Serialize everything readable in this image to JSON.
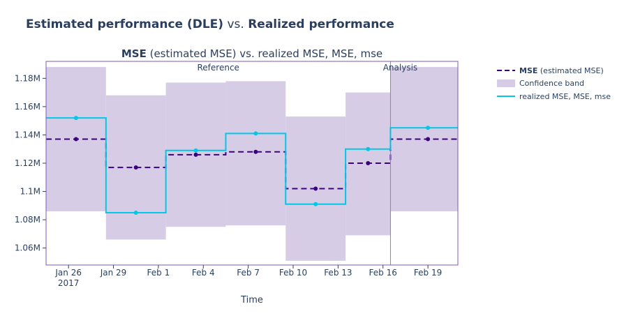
{
  "title": {
    "metric_bold": "Estimated performance (DLE)",
    "vs": "vs.",
    "realized_bold": "Realized performance"
  },
  "chart_data": {
    "type": "line",
    "subtitle": {
      "bold": "MSE",
      "rest": " (estimated MSE) vs. realized MSE, MSE, mse"
    },
    "xlabel": "Time",
    "ylabel": "",
    "x_tick_labels": [
      {
        "date": "2017-01-26",
        "label": "Jan 26",
        "label2": "2017"
      },
      {
        "date": "2017-01-29",
        "label": "Jan 29"
      },
      {
        "date": "2017-02-01",
        "label": "Feb 1"
      },
      {
        "date": "2017-02-04",
        "label": "Feb 4"
      },
      {
        "date": "2017-02-07",
        "label": "Feb 7"
      },
      {
        "date": "2017-02-10",
        "label": "Feb 10"
      },
      {
        "date": "2017-02-13",
        "label": "Feb 13"
      },
      {
        "date": "2017-02-16",
        "label": "Feb 16"
      },
      {
        "date": "2017-02-19",
        "label": "Feb 19"
      }
    ],
    "y_ticks": [
      {
        "value": 1060000,
        "label": "1.06M"
      },
      {
        "value": 1080000,
        "label": "1.08M"
      },
      {
        "value": 1100000,
        "label": "1.1M"
      },
      {
        "value": 1120000,
        "label": "1.12M"
      },
      {
        "value": 1140000,
        "label": "1.14M"
      },
      {
        "value": 1160000,
        "label": "1.16M"
      },
      {
        "value": 1180000,
        "label": "1.18M"
      }
    ],
    "ylim": [
      1048000,
      1192000
    ],
    "xlim": [
      "2017-01-24T12:00",
      "2017-02-21T00:00"
    ],
    "split_date": "2017-02-16T12:00",
    "period_labels": {
      "reference": "Reference",
      "analysis": "Analysis"
    },
    "chunks": [
      {
        "start": "2017-01-24T12:00",
        "end": "2017-01-28T12:00",
        "mid": "2017-01-26T12:00",
        "estimated": 1137000,
        "realized": 1152000,
        "lower": 1086000,
        "upper": 1188000
      },
      {
        "start": "2017-01-28T12:00",
        "end": "2017-02-01T12:00",
        "mid": "2017-01-30T12:00",
        "estimated": 1117000,
        "realized": 1085000,
        "lower": 1066000,
        "upper": 1168000
      },
      {
        "start": "2017-02-01T12:00",
        "end": "2017-02-05T12:00",
        "mid": "2017-02-03T12:00",
        "estimated": 1126000,
        "realized": 1129000,
        "lower": 1075000,
        "upper": 1177000
      },
      {
        "start": "2017-02-05T12:00",
        "end": "2017-02-09T12:00",
        "mid": "2017-02-07T12:00",
        "estimated": 1128000,
        "realized": 1141000,
        "lower": 1076000,
        "upper": 1178000
      },
      {
        "start": "2017-02-09T12:00",
        "end": "2017-02-13T12:00",
        "mid": "2017-02-11T12:00",
        "estimated": 1102000,
        "realized": 1091000,
        "lower": 1051000,
        "upper": 1153000
      },
      {
        "start": "2017-02-13T12:00",
        "end": "2017-02-16T12:00",
        "mid": "2017-02-15T00:00",
        "estimated": 1120000,
        "realized": 1130000,
        "lower": 1069000,
        "upper": 1170000
      },
      {
        "start": "2017-02-16T12:00",
        "end": "2017-02-21T00:00",
        "mid": "2017-02-19T00:00",
        "estimated": 1137000,
        "realized": 1145000,
        "lower": 1086000,
        "upper": 1188000
      }
    ],
    "legend": {
      "estimated_bold": "MSE",
      "estimated_rest": " (estimated MSE)",
      "band": "Confidence band",
      "realized": "realized MSE, MSE, mse",
      "placement": "right"
    },
    "colors": {
      "estimated": "#3b0280",
      "realized": "#00c8e5",
      "band": "#d7cce6",
      "frame": "#7b5ab8",
      "split": "#8a8a8a",
      "text": "#2a3f5f"
    },
    "grid": false
  }
}
